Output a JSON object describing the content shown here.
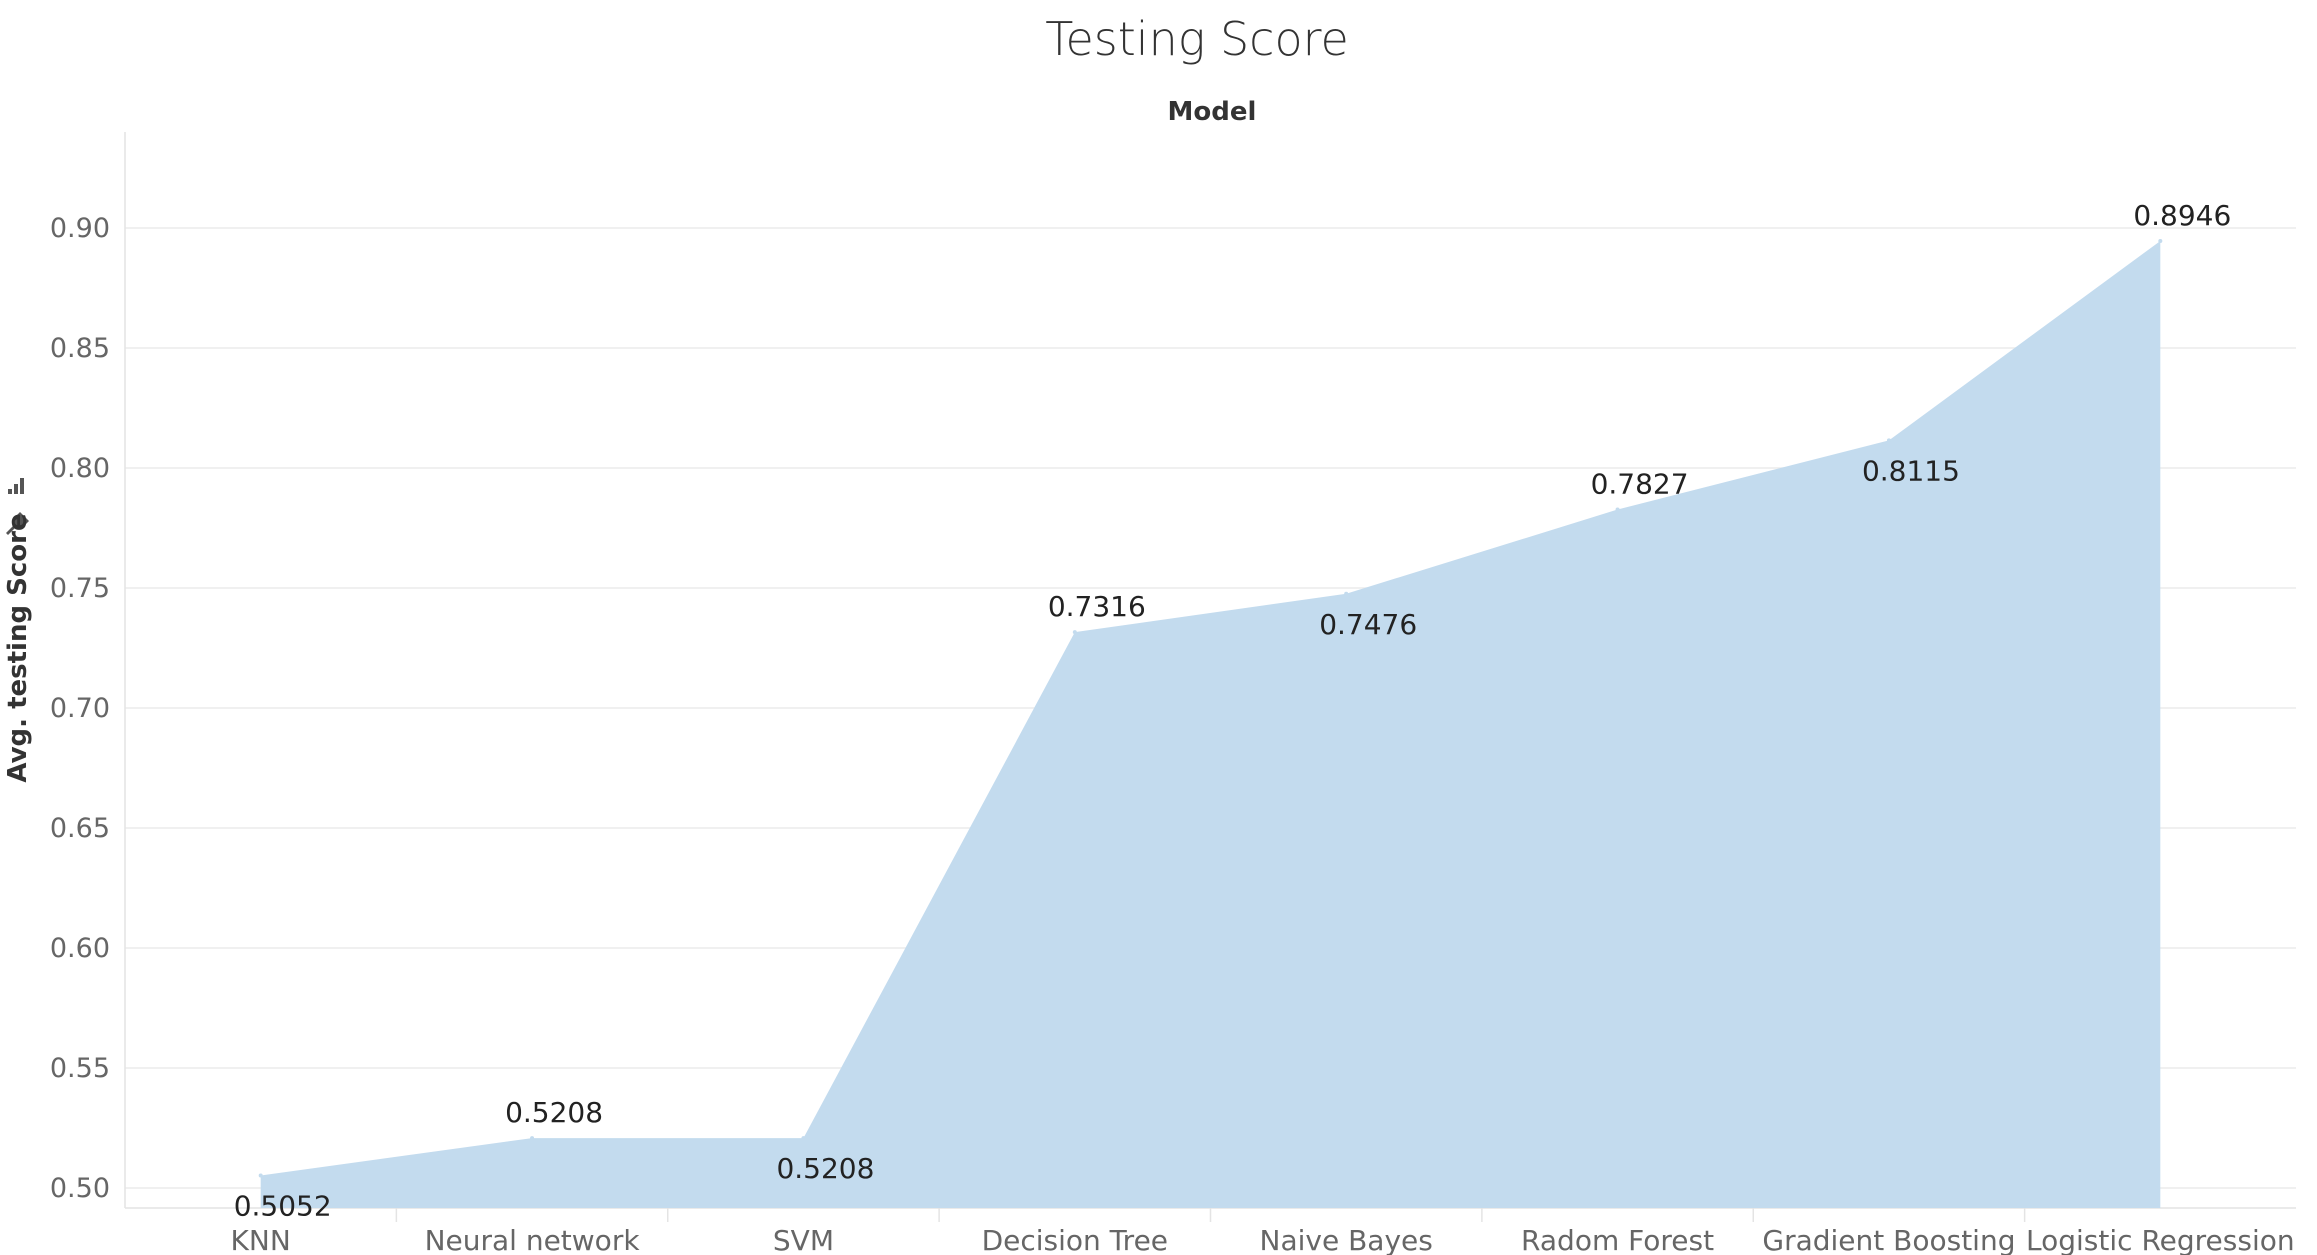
{
  "chart_data": {
    "type": "area",
    "title": "Testing Score",
    "column_header": "Model",
    "xlabel": "",
    "ylabel": "Avg. testing Score",
    "categories": [
      "KNN",
      "Neural network",
      "SVM",
      "Decision Tree",
      "Naive Bayes",
      "Radom Forest",
      "Gradient Boosting",
      "Logistic Regression"
    ],
    "values": [
      0.5052,
      0.5208,
      0.5208,
      0.7316,
      0.7476,
      0.7827,
      0.8115,
      0.8946
    ],
    "data_labels": [
      "0.5052",
      "0.5208",
      "0.5208",
      "0.7316",
      "0.7476",
      "0.7827",
      "0.8115",
      "0.8946"
    ],
    "label_positions": [
      "below",
      "above",
      "below",
      "above",
      "below",
      "above",
      "below",
      "above"
    ],
    "ylim": [
      0.4925,
      0.94
    ],
    "yticks": [
      0.5,
      0.55,
      0.6,
      0.65,
      0.7,
      0.75,
      0.8,
      0.85,
      0.9
    ],
    "ytick_labels": [
      "0.50",
      "0.55",
      "0.60",
      "0.65",
      "0.70",
      "0.75",
      "0.80",
      "0.85",
      "0.90"
    ],
    "grid": true,
    "legend": "none",
    "fill_color": "#c3dbee"
  }
}
